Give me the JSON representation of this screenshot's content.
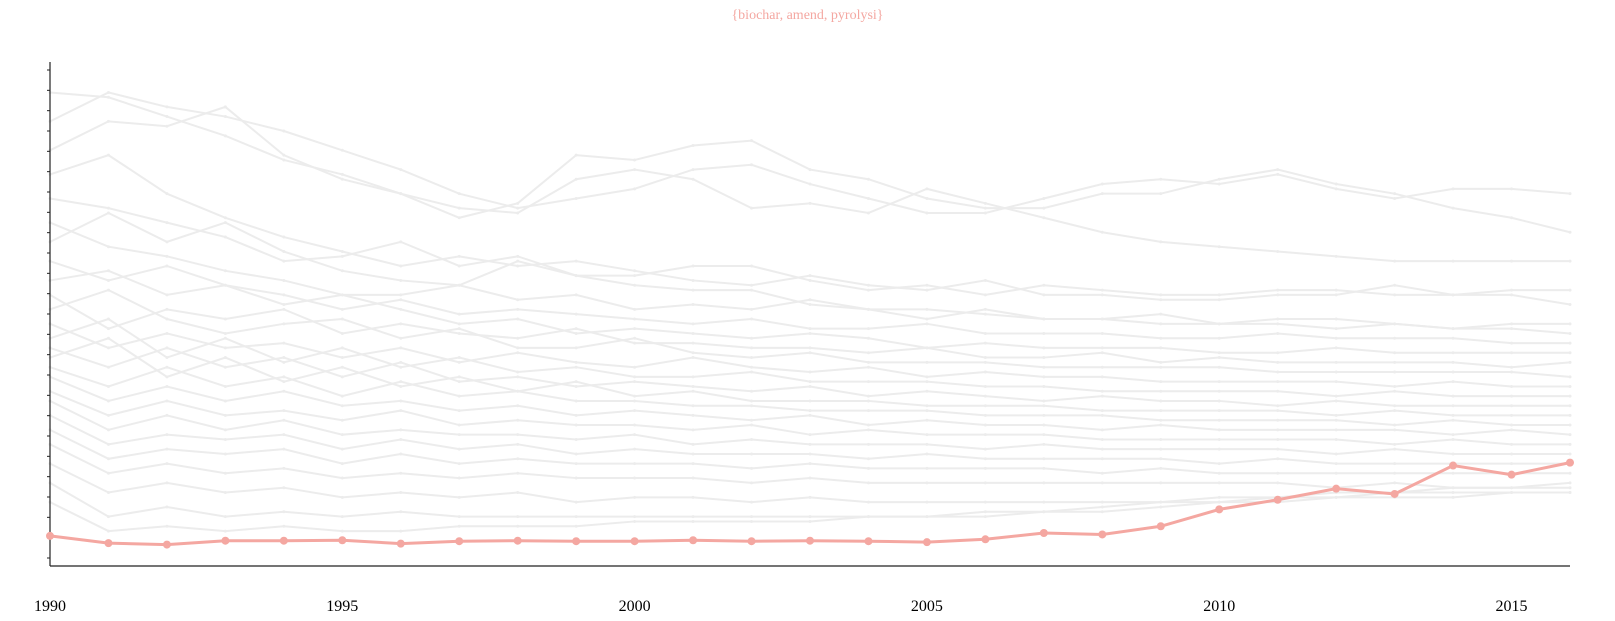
{
  "chart_data": {
    "type": "line",
    "title": "{biochar, amend, pyrolysi}",
    "xlabel": "",
    "ylabel": "",
    "x": [
      1990,
      1991,
      1992,
      1993,
      1994,
      1995,
      1996,
      1997,
      1998,
      1999,
      2000,
      2001,
      2002,
      2003,
      2004,
      2005,
      2006,
      2007,
      2008,
      2009,
      2010,
      2011,
      2012,
      2013,
      2014,
      2015,
      2016
    ],
    "xticks": [
      1990,
      1995,
      2000,
      2005,
      2010,
      2015
    ],
    "xlim": [
      1990,
      2016
    ],
    "ylim": [
      0,
      1
    ],
    "y_tick_labels_shown": false,
    "grid": false,
    "legend": "none",
    "highlight_series": {
      "name": "{biochar, amend, pyrolysi}",
      "color": "#f4a7a1",
      "values": [
        0.05,
        0.035,
        0.032,
        0.04,
        0.04,
        0.041,
        0.034,
        0.039,
        0.04,
        0.039,
        0.039,
        0.041,
        0.039,
        0.04,
        0.039,
        0.037,
        0.043,
        0.056,
        0.053,
        0.07,
        0.105,
        0.125,
        0.148,
        0.137,
        0.196,
        0.177,
        0.202
      ]
    },
    "background_series": {
      "color": "#ececec",
      "values": [
        [
          0.97,
          0.96,
          0.92,
          0.88,
          0.83,
          0.8,
          0.76,
          0.73,
          0.72,
          0.79,
          0.81,
          0.79,
          0.73,
          0.74,
          0.72,
          0.77,
          0.74,
          0.71,
          0.68,
          0.66,
          0.65,
          0.64,
          0.63,
          0.62,
          0.62,
          0.62,
          0.62
        ],
        [
          0.91,
          0.97,
          0.94,
          0.92,
          0.89,
          0.85,
          0.81,
          0.76,
          0.73,
          0.75,
          0.77,
          0.81,
          0.82,
          0.78,
          0.75,
          0.72,
          0.72,
          0.75,
          0.78,
          0.79,
          0.78,
          0.8,
          0.77,
          0.75,
          0.77,
          0.77,
          0.76
        ],
        [
          0.85,
          0.91,
          0.9,
          0.94,
          0.84,
          0.79,
          0.76,
          0.71,
          0.74,
          0.84,
          0.83,
          0.86,
          0.87,
          0.81,
          0.79,
          0.75,
          0.73,
          0.73,
          0.76,
          0.76,
          0.79,
          0.81,
          0.78,
          0.76,
          0.73,
          0.71,
          0.68
        ],
        [
          0.8,
          0.84,
          0.76,
          0.71,
          0.67,
          0.64,
          0.61,
          0.63,
          0.61,
          0.62,
          0.6,
          0.58,
          0.57,
          0.59,
          0.57,
          0.56,
          0.58,
          0.55,
          0.55,
          0.54,
          0.54,
          0.55,
          0.55,
          0.57,
          0.55,
          0.56,
          0.56
        ],
        [
          0.75,
          0.73,
          0.7,
          0.67,
          0.62,
          0.63,
          0.66,
          0.61,
          0.63,
          0.59,
          0.59,
          0.61,
          0.61,
          0.58,
          0.56,
          0.57,
          0.55,
          0.57,
          0.56,
          0.55,
          0.55,
          0.56,
          0.56,
          0.55,
          0.55,
          0.55,
          0.53
        ],
        [
          0.7,
          0.65,
          0.63,
          0.6,
          0.58,
          0.55,
          0.55,
          0.57,
          0.54,
          0.55,
          0.52,
          0.53,
          0.52,
          0.54,
          0.52,
          0.52,
          0.51,
          0.5,
          0.5,
          0.51,
          0.49,
          0.5,
          0.5,
          0.49,
          0.48,
          0.49,
          0.49
        ],
        [
          0.66,
          0.72,
          0.66,
          0.7,
          0.64,
          0.6,
          0.58,
          0.57,
          0.62,
          0.59,
          0.57,
          0.56,
          0.56,
          0.53,
          0.52,
          0.5,
          0.52,
          0.5,
          0.5,
          0.49,
          0.49,
          0.49,
          0.48,
          0.49,
          0.48,
          0.48,
          0.47
        ],
        [
          0.62,
          0.58,
          0.61,
          0.57,
          0.55,
          0.52,
          0.54,
          0.51,
          0.52,
          0.51,
          0.5,
          0.49,
          0.5,
          0.48,
          0.48,
          0.49,
          0.47,
          0.47,
          0.47,
          0.46,
          0.46,
          0.47,
          0.46,
          0.46,
          0.46,
          0.45,
          0.45
        ],
        [
          0.58,
          0.6,
          0.55,
          0.57,
          0.53,
          0.55,
          0.52,
          0.49,
          0.5,
          0.47,
          0.48,
          0.47,
          0.46,
          0.47,
          0.46,
          0.44,
          0.45,
          0.44,
          0.44,
          0.44,
          0.43,
          0.43,
          0.44,
          0.43,
          0.43,
          0.43,
          0.43
        ],
        [
          0.55,
          0.48,
          0.52,
          0.5,
          0.52,
          0.47,
          0.49,
          0.47,
          0.46,
          0.48,
          0.45,
          0.45,
          0.44,
          0.44,
          0.43,
          0.44,
          0.42,
          0.42,
          0.43,
          0.41,
          0.42,
          0.41,
          0.41,
          0.41,
          0.41,
          0.4,
          0.41
        ],
        [
          0.52,
          0.56,
          0.5,
          0.47,
          0.49,
          0.5,
          0.46,
          0.48,
          0.44,
          0.44,
          0.46,
          0.43,
          0.42,
          0.43,
          0.41,
          0.41,
          0.41,
          0.4,
          0.4,
          0.4,
          0.4,
          0.39,
          0.39,
          0.39,
          0.39,
          0.39,
          0.38
        ],
        [
          0.49,
          0.44,
          0.47,
          0.44,
          0.45,
          0.42,
          0.44,
          0.41,
          0.43,
          0.41,
          0.4,
          0.42,
          0.4,
          0.39,
          0.4,
          0.38,
          0.39,
          0.38,
          0.38,
          0.37,
          0.37,
          0.37,
          0.37,
          0.36,
          0.37,
          0.36,
          0.36
        ],
        [
          0.46,
          0.5,
          0.42,
          0.46,
          0.41,
          0.44,
          0.4,
          0.42,
          0.39,
          0.4,
          0.38,
          0.38,
          0.39,
          0.37,
          0.37,
          0.37,
          0.36,
          0.36,
          0.35,
          0.35,
          0.35,
          0.35,
          0.34,
          0.35,
          0.34,
          0.34,
          0.34
        ],
        [
          0.44,
          0.4,
          0.44,
          0.4,
          0.42,
          0.38,
          0.41,
          0.37,
          0.38,
          0.36,
          0.37,
          0.36,
          0.35,
          0.36,
          0.34,
          0.35,
          0.34,
          0.33,
          0.34,
          0.33,
          0.33,
          0.32,
          0.33,
          0.32,
          0.32,
          0.32,
          0.32
        ],
        [
          0.42,
          0.46,
          0.38,
          0.42,
          0.37,
          0.4,
          0.36,
          0.38,
          0.35,
          0.37,
          0.34,
          0.35,
          0.33,
          0.33,
          0.33,
          0.32,
          0.32,
          0.32,
          0.31,
          0.31,
          0.31,
          0.31,
          0.3,
          0.31,
          0.3,
          0.3,
          0.3
        ],
        [
          0.4,
          0.36,
          0.4,
          0.36,
          0.38,
          0.34,
          0.37,
          0.34,
          0.35,
          0.33,
          0.33,
          0.32,
          0.32,
          0.31,
          0.31,
          0.31,
          0.3,
          0.3,
          0.3,
          0.29,
          0.29,
          0.29,
          0.29,
          0.28,
          0.29,
          0.28,
          0.28
        ],
        [
          0.38,
          0.33,
          0.36,
          0.33,
          0.35,
          0.32,
          0.33,
          0.31,
          0.32,
          0.3,
          0.31,
          0.3,
          0.29,
          0.3,
          0.28,
          0.29,
          0.28,
          0.28,
          0.27,
          0.28,
          0.27,
          0.27,
          0.27,
          0.27,
          0.26,
          0.27,
          0.26
        ],
        [
          0.35,
          0.3,
          0.33,
          0.3,
          0.31,
          0.29,
          0.31,
          0.28,
          0.29,
          0.28,
          0.28,
          0.27,
          0.28,
          0.26,
          0.27,
          0.26,
          0.26,
          0.26,
          0.25,
          0.25,
          0.25,
          0.25,
          0.25,
          0.24,
          0.25,
          0.24,
          0.24
        ],
        [
          0.33,
          0.27,
          0.3,
          0.27,
          0.29,
          0.26,
          0.27,
          0.26,
          0.26,
          0.25,
          0.26,
          0.24,
          0.25,
          0.24,
          0.24,
          0.24,
          0.23,
          0.24,
          0.23,
          0.23,
          0.23,
          0.23,
          0.22,
          0.23,
          0.22,
          0.22,
          0.22
        ],
        [
          0.3,
          0.24,
          0.26,
          0.25,
          0.26,
          0.23,
          0.25,
          0.23,
          0.24,
          0.22,
          0.23,
          0.22,
          0.22,
          0.22,
          0.21,
          0.22,
          0.21,
          0.21,
          0.21,
          0.21,
          0.2,
          0.21,
          0.2,
          0.2,
          0.2,
          0.2,
          0.2
        ],
        [
          0.27,
          0.21,
          0.23,
          0.22,
          0.23,
          0.2,
          0.22,
          0.2,
          0.21,
          0.2,
          0.2,
          0.2,
          0.19,
          0.2,
          0.19,
          0.19,
          0.19,
          0.19,
          0.18,
          0.19,
          0.18,
          0.18,
          0.18,
          0.18,
          0.18,
          0.18,
          0.18
        ],
        [
          0.24,
          0.18,
          0.2,
          0.18,
          0.19,
          0.17,
          0.18,
          0.17,
          0.18,
          0.17,
          0.17,
          0.17,
          0.16,
          0.17,
          0.16,
          0.16,
          0.16,
          0.16,
          0.16,
          0.16,
          0.16,
          0.16,
          0.15,
          0.16,
          0.15,
          0.15,
          0.15
        ],
        [
          0.2,
          0.14,
          0.16,
          0.14,
          0.15,
          0.13,
          0.14,
          0.13,
          0.14,
          0.12,
          0.13,
          0.13,
          0.12,
          0.13,
          0.12,
          0.12,
          0.12,
          0.12,
          0.12,
          0.12,
          0.13,
          0.13,
          0.13,
          0.14,
          0.14,
          0.14,
          0.14
        ],
        [
          0.16,
          0.09,
          0.11,
          0.09,
          0.1,
          0.09,
          0.1,
          0.09,
          0.09,
          0.09,
          0.09,
          0.09,
          0.09,
          0.09,
          0.09,
          0.09,
          0.09,
          0.1,
          0.1,
          0.11,
          0.12,
          0.12,
          0.13,
          0.13,
          0.13,
          0.14,
          0.14
        ],
        [
          0.12,
          0.06,
          0.07,
          0.06,
          0.07,
          0.06,
          0.06,
          0.07,
          0.07,
          0.07,
          0.08,
          0.08,
          0.08,
          0.08,
          0.09,
          0.09,
          0.1,
          0.1,
          0.11,
          0.12,
          0.12,
          0.13,
          0.14,
          0.14,
          0.15,
          0.15,
          0.16
        ]
      ]
    }
  }
}
